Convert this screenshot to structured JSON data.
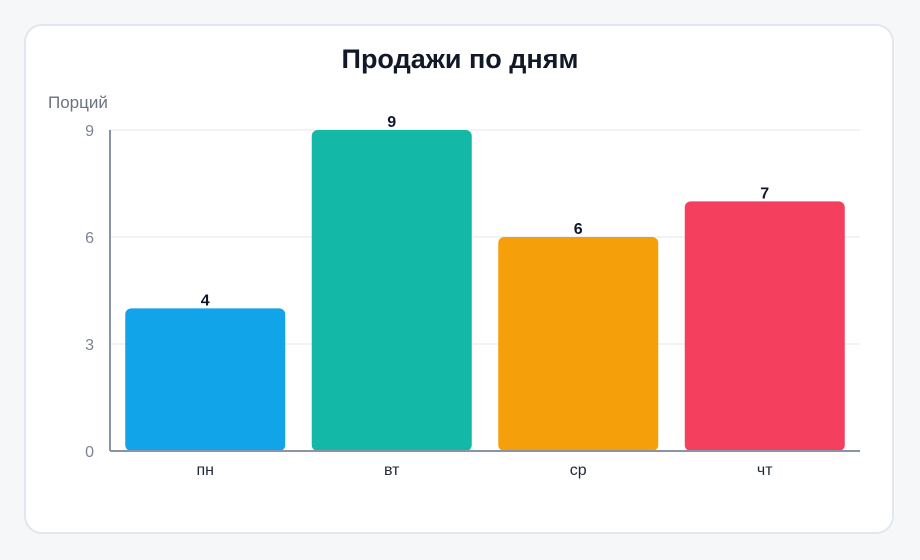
{
  "chart_data": {
    "type": "bar",
    "title": "Продажи по дням",
    "ylabel": "Порций",
    "xlabel": "",
    "categories": [
      "пн",
      "вт",
      "ср",
      "чт"
    ],
    "values": [
      4,
      9,
      6,
      7
    ],
    "colors": [
      "#12a4e8",
      "#14b8a6",
      "#f59f0b",
      "#f43f5e"
    ],
    "ylim": [
      0,
      9
    ],
    "yticks": [
      "0",
      "3",
      "6",
      "9"
    ],
    "grid": true,
    "legend": "none"
  }
}
